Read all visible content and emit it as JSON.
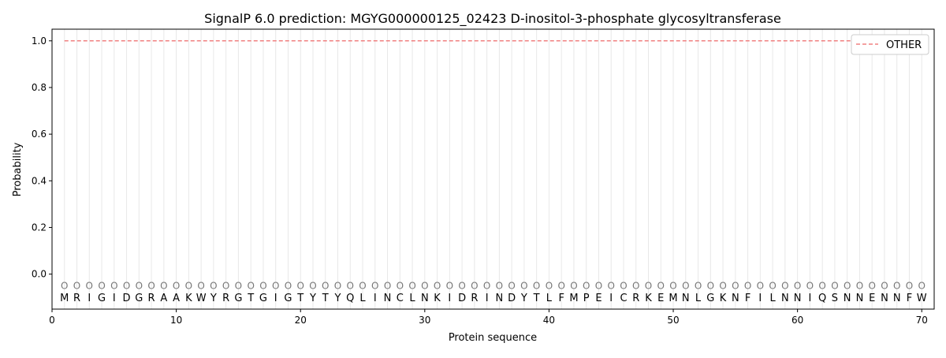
{
  "chart_data": {
    "type": "line",
    "title": "SignalP 6.0 prediction: MGYG000000125_02423 D-inositol-3-phosphate glycosyltransferase",
    "xlabel": "Protein sequence",
    "ylabel": "Probability",
    "xlim": [
      0,
      71
    ],
    "ylim": [
      -0.15,
      1.05
    ],
    "xticks": [
      0,
      10,
      20,
      30,
      40,
      50,
      60,
      70
    ],
    "yticks": [
      0.0,
      0.2,
      0.4,
      0.6,
      0.8,
      1.0
    ],
    "ytick_labels": [
      "0.0",
      "0.2",
      "0.4",
      "0.6",
      "0.8",
      "1.0"
    ],
    "grid": "vertical lines at each residue",
    "legend_placement": "top-right",
    "sequence": [
      "M",
      "R",
      "I",
      "G",
      "I",
      "D",
      "G",
      "R",
      "A",
      "A",
      "K",
      "W",
      "Y",
      "R",
      "G",
      "T",
      "G",
      "I",
      "G",
      "T",
      "Y",
      "T",
      "Y",
      "Q",
      "L",
      "I",
      "N",
      "C",
      "L",
      "N",
      "K",
      "I",
      "D",
      "R",
      "I",
      "N",
      "D",
      "Y",
      "T",
      "L",
      "F",
      "M",
      "P",
      "E",
      "I",
      "C",
      "R",
      "K",
      "E",
      "M",
      "N",
      "L",
      "G",
      "K",
      "N",
      "F",
      "I",
      "L",
      "N",
      "N",
      "I",
      "Q",
      "S",
      "N",
      "N",
      "E",
      "N",
      "N",
      "F",
      "W"
    ],
    "predicted_labels": "OOOOOOOOOOOOOOOOOOOOOOOOOOOOOOOOOOOOOOOOOOOOOOOOOOOOOOOOOOOOOOOOOOOOOO",
    "series": [
      {
        "name": "OTHER",
        "color": "#f08080",
        "style": "dashed",
        "x_range": [
          1,
          70
        ],
        "value": 1.0
      }
    ]
  }
}
